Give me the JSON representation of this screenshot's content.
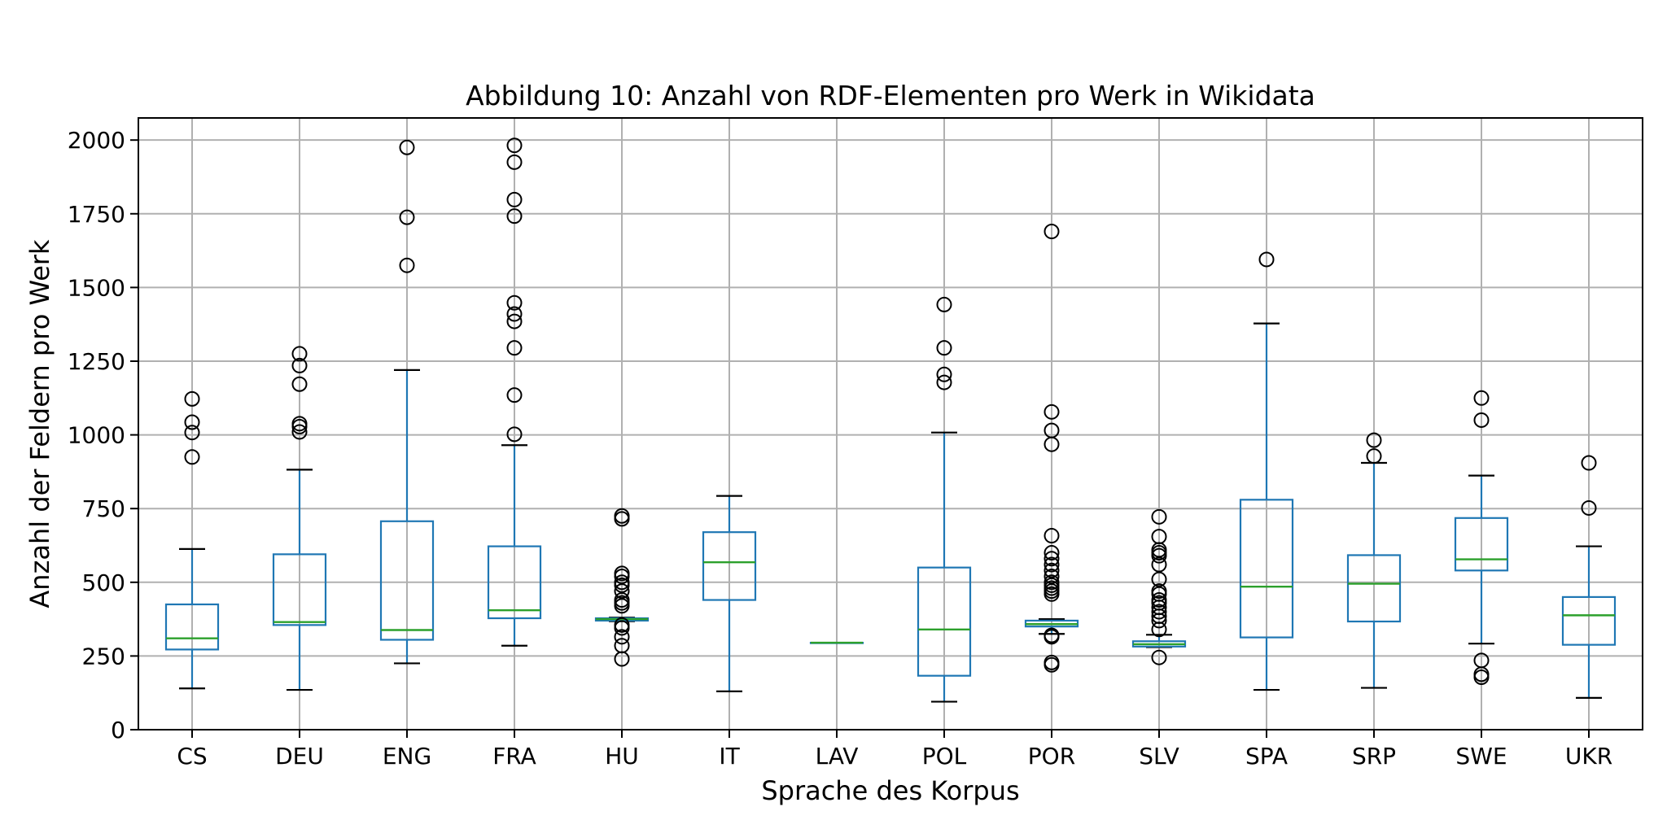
{
  "chart_data": {
    "type": "box",
    "title": "Abbildung 10: Anzahl von RDF-Elementen pro Werk in Wikidata",
    "xlabel": "Sprache des Korpus",
    "ylabel": "Anzahl der Feldern pro Werk",
    "ylim": [
      0,
      2075
    ],
    "yticks": [
      "0",
      "250",
      "500",
      "750",
      "1000",
      "1250",
      "1500",
      "1750",
      "2000"
    ],
    "grid": true,
    "legend": "none",
    "colors": {
      "box": "#1f77b4",
      "median": "#2ca02c",
      "whisker_cap": "#000000",
      "outlier": "#000000",
      "grid": "#b0b0b0"
    },
    "categories": [
      "CS",
      "DEU",
      "ENG",
      "FRA",
      "HU",
      "IT",
      "LAV",
      "POL",
      "POR",
      "SLV",
      "SPA",
      "SRP",
      "SWE",
      "UKR"
    ],
    "boxes": [
      {
        "category": "CS",
        "whisker_low": 140,
        "q1": 272,
        "median": 310,
        "q3": 425,
        "whisker_high": 613,
        "outliers": [
          925,
          1008,
          1043,
          1122
        ]
      },
      {
        "category": "DEU",
        "whisker_low": 135,
        "q1": 355,
        "median": 365,
        "q3": 595,
        "whisker_high": 882,
        "outliers": [
          1010,
          1028,
          1038,
          1172,
          1235,
          1275
        ]
      },
      {
        "category": "ENG",
        "whisker_low": 225,
        "q1": 305,
        "median": 338,
        "q3": 707,
        "whisker_high": 1220,
        "outliers": [
          1575,
          1738,
          1975
        ]
      },
      {
        "category": "FRA",
        "whisker_low": 285,
        "q1": 378,
        "median": 405,
        "q3": 622,
        "whisker_high": 965,
        "outliers": [
          1002,
          1135,
          1295,
          1385,
          1410,
          1448,
          1742,
          1798,
          1925,
          1982
        ]
      },
      {
        "category": "HU",
        "whisker_low": 368,
        "q1": 370,
        "median": 375,
        "q3": 378,
        "whisker_high": 380,
        "outliers": [
          240,
          285,
          315,
          345,
          355,
          420,
          430,
          440,
          470,
          490,
          500,
          520,
          530,
          715,
          725
        ]
      },
      {
        "category": "IT",
        "whisker_low": 130,
        "q1": 440,
        "median": 568,
        "q3": 670,
        "whisker_high": 793,
        "outliers": []
      },
      {
        "category": "LAV",
        "whisker_low": 295,
        "q1": 295,
        "median": 295,
        "q3": 295,
        "whisker_high": 295,
        "outliers": []
      },
      {
        "category": "POL",
        "whisker_low": 95,
        "q1": 183,
        "median": 340,
        "q3": 550,
        "whisker_high": 1008,
        "outliers": [
          1178,
          1205,
          1295,
          1442
        ]
      },
      {
        "category": "POR",
        "whisker_low": 325,
        "q1": 350,
        "median": 358,
        "q3": 370,
        "whisker_high": 375,
        "outliers": [
          220,
          228,
          315,
          320,
          460,
          470,
          480,
          490,
          500,
          520,
          540,
          560,
          580,
          600,
          658,
          968,
          1015,
          1078,
          1690
        ]
      },
      {
        "category": "SLV",
        "whisker_low": 280,
        "q1": 282,
        "median": 290,
        "q3": 300,
        "whisker_high": 322,
        "outliers": [
          245,
          340,
          370,
          385,
          400,
          415,
          430,
          440,
          460,
          470,
          510,
          560,
          590,
          600,
          610,
          655,
          722
        ]
      },
      {
        "category": "SPA",
        "whisker_low": 135,
        "q1": 313,
        "median": 485,
        "q3": 780,
        "whisker_high": 1378,
        "outliers": [
          1595
        ]
      },
      {
        "category": "SRP",
        "whisker_low": 142,
        "q1": 367,
        "median": 495,
        "q3": 592,
        "whisker_high": 905,
        "outliers": [
          928,
          982
        ]
      },
      {
        "category": "SWE",
        "whisker_low": 292,
        "q1": 540,
        "median": 578,
        "q3": 718,
        "whisker_high": 862,
        "outliers": [
          178,
          188,
          235,
          1050,
          1125
        ]
      },
      {
        "category": "UKR",
        "whisker_low": 108,
        "q1": 288,
        "median": 388,
        "q3": 450,
        "whisker_high": 622,
        "outliers": [
          752,
          905
        ]
      }
    ]
  }
}
